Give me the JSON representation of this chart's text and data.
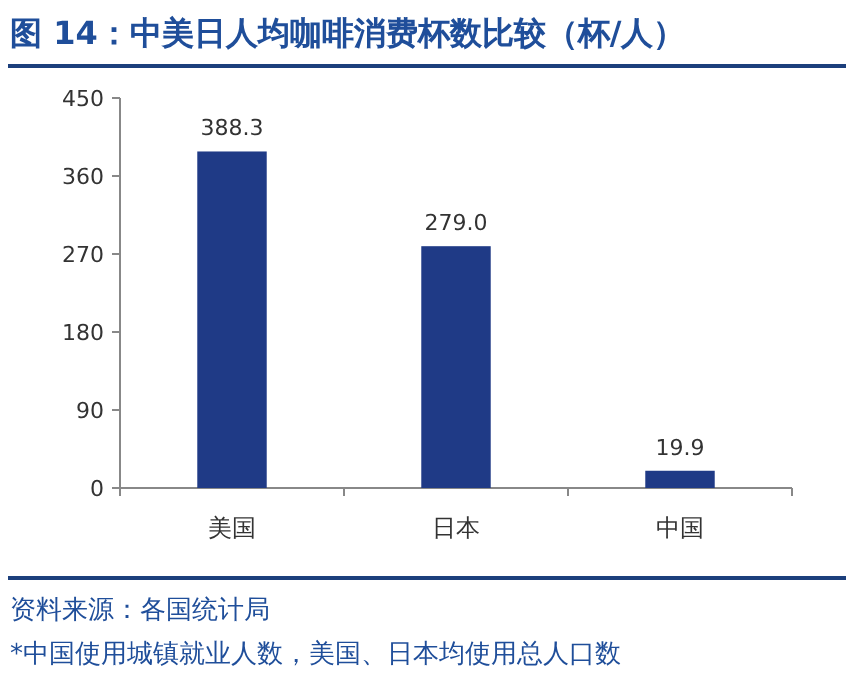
{
  "chart_data": {
    "type": "bar",
    "title": "图 14：中美日人均咖啡消费杯数比较（杯/人）",
    "categories": [
      "美国",
      "日本",
      "中国"
    ],
    "values": [
      388.3,
      279.0,
      19.9
    ],
    "value_labels": [
      "388.3",
      "279.0",
      "19.9"
    ],
    "color": "#1f3a86",
    "ylim": [
      0,
      450
    ],
    "yticks": [
      0,
      90,
      180,
      270,
      360,
      450
    ],
    "grid": false,
    "annotations": [
      "资料来源：各国统计局",
      "*中国使用城镇就业人数，美国、日本均使用总人口数"
    ]
  }
}
